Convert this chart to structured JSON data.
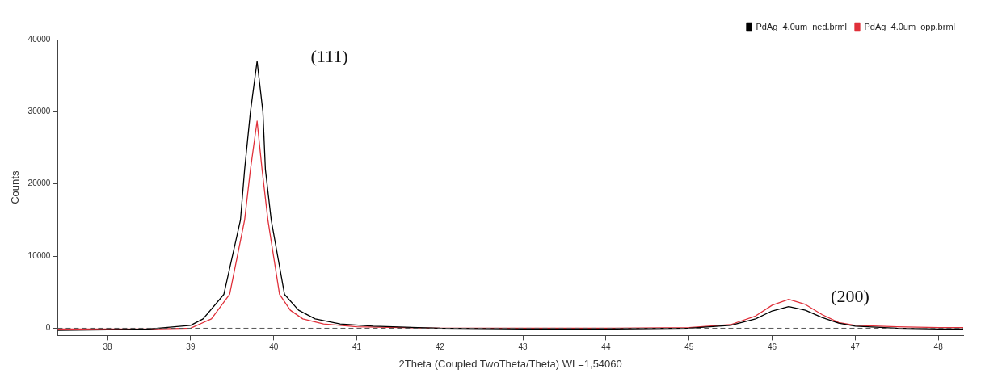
{
  "chart_data": {
    "type": "line",
    "xlabel": "2Theta (Coupled TwoTheta/Theta) WL=1,54060",
    "ylabel": "Counts",
    "annotations": [
      "(111)",
      "(200)"
    ],
    "xlim": [
      37.4,
      48.3
    ],
    "xticks": [
      38,
      39,
      40,
      41,
      42,
      43,
      44,
      45,
      46,
      47,
      48
    ],
    "ylim": [
      -1000,
      40000
    ],
    "yticks": [
      0,
      10000,
      20000,
      30000,
      40000
    ],
    "grid": false,
    "legend": "top right",
    "marker": "none",
    "line_style": "solid",
    "ref_lines": [
      {
        "axis": "y",
        "value": 0,
        "line_style": "dashed",
        "color": "#555555"
      }
    ],
    "series": [
      {
        "name": "PdAg_4.0um_ned.brml",
        "color": "#000000",
        "x": [
          37.4,
          38,
          38.5,
          39,
          39.15,
          39.4,
          39.6,
          39.65,
          39.72,
          39.8,
          39.87,
          39.9,
          39.97,
          40.13,
          40.3,
          40.5,
          40.8,
          41.2,
          42,
          43,
          44,
          45,
          45.5,
          45.8,
          46.0,
          46.2,
          46.4,
          46.6,
          46.8,
          47,
          47.5,
          48,
          48.3
        ],
        "values": [
          -300,
          -200,
          -100,
          400,
          1300,
          4700,
          15000,
          22000,
          30000,
          37000,
          30000,
          22000,
          15000,
          4700,
          2500,
          1300,
          600,
          300,
          0,
          -100,
          -100,
          0,
          400,
          1300,
          2400,
          3000,
          2500,
          1500,
          700,
          300,
          0,
          -100,
          -100
        ]
      },
      {
        "name": "PdAg_4.0um_opp.brml",
        "color": "#e0303a",
        "x": [
          37.4,
          38,
          38.5,
          39,
          39.25,
          39.47,
          39.65,
          39.72,
          39.8,
          39.86,
          39.93,
          40.07,
          40.2,
          40.35,
          40.6,
          41,
          42,
          43,
          44,
          45,
          45.5,
          45.8,
          46.0,
          46.2,
          46.4,
          46.6,
          46.8,
          47,
          47.5,
          48,
          48.3
        ],
        "values": [
          -100,
          -100,
          -100,
          0,
          1300,
          4700,
          15000,
          22000,
          28700,
          22000,
          15000,
          4700,
          2500,
          1300,
          600,
          200,
          0,
          0,
          0,
          100,
          500,
          1700,
          3200,
          4000,
          3300,
          1900,
          800,
          400,
          200,
          100,
          100
        ]
      }
    ]
  }
}
